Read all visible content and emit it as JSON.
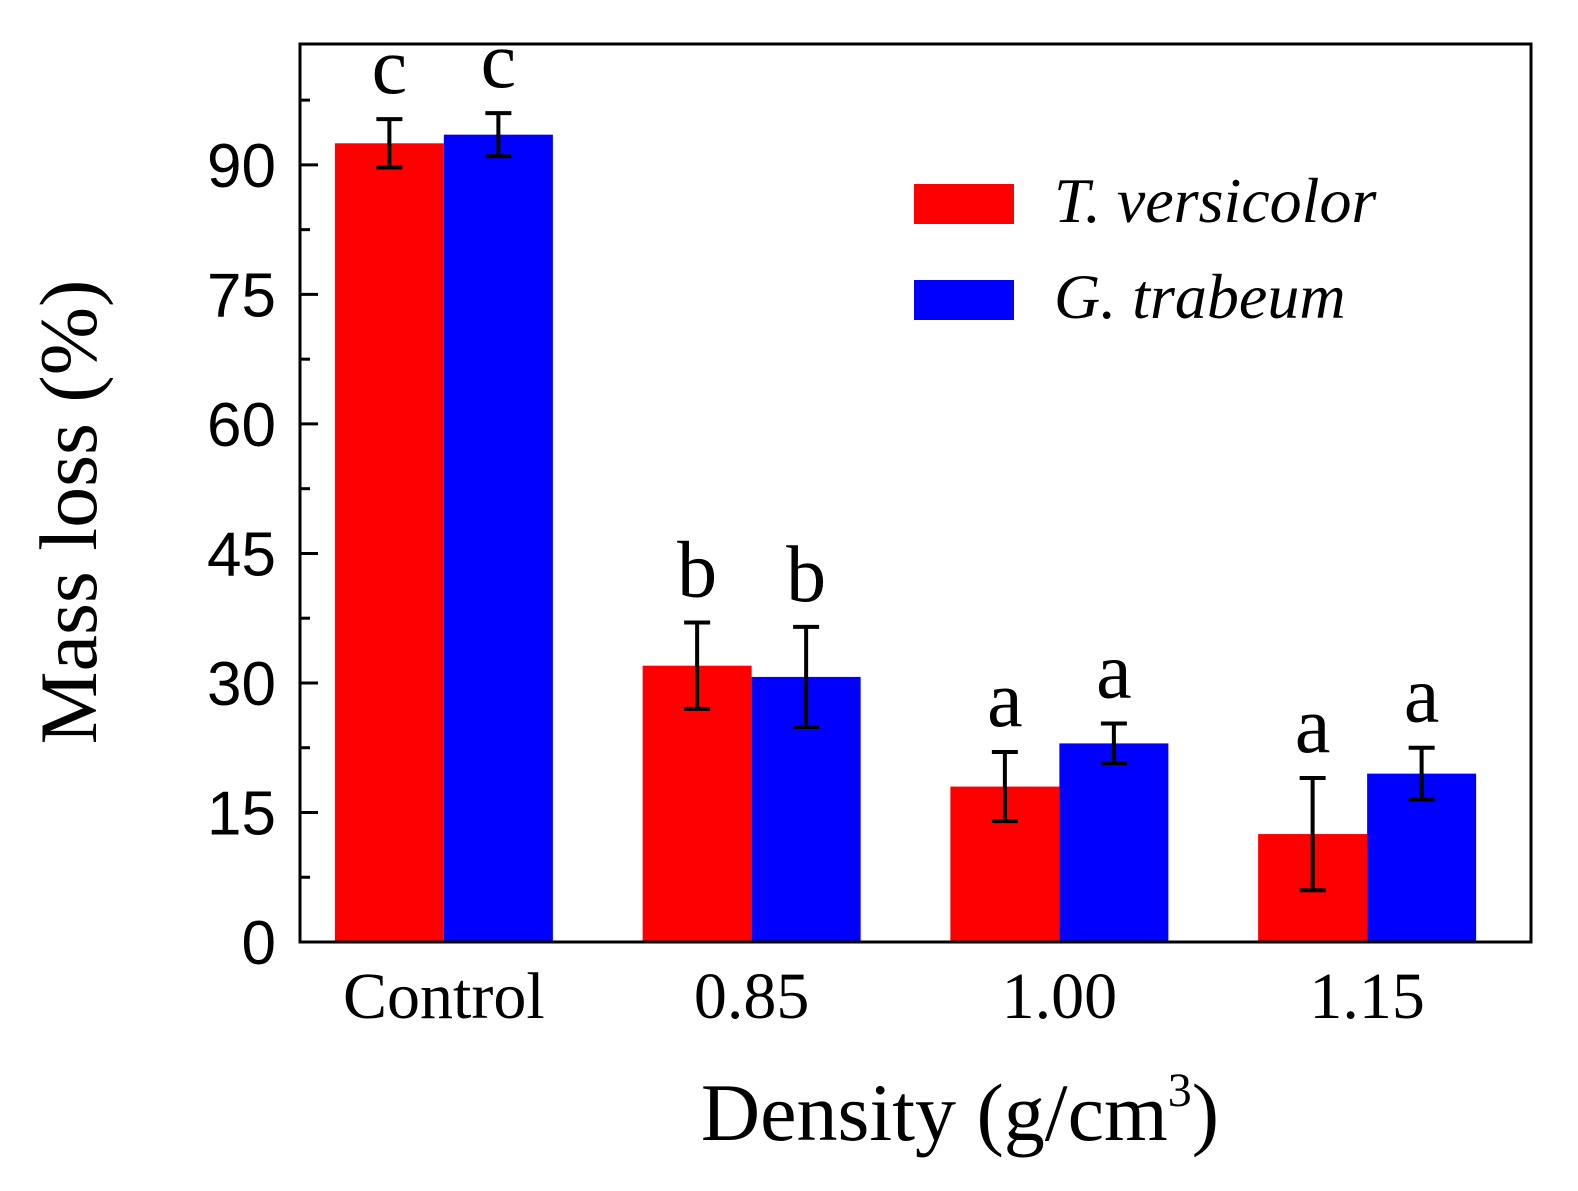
{
  "chart_data": {
    "type": "bar",
    "categories": [
      "Control",
      "0.85",
      "1.00",
      "1.15"
    ],
    "series": [
      {
        "name": "T. versicolor",
        "color": "#ff0000",
        "values": [
          92.5,
          32.0,
          18.0,
          12.5
        ],
        "errors": [
          2.8,
          5.0,
          4.0,
          6.5
        ],
        "significance": [
          "c",
          "b",
          "a",
          "a"
        ]
      },
      {
        "name": "G. trabeum",
        "color": "#0000ff",
        "values": [
          93.5,
          30.7,
          23.0,
          19.5
        ],
        "errors": [
          2.5,
          5.8,
          2.3,
          3.0
        ],
        "significance": [
          "c",
          "b",
          "a",
          "a"
        ]
      }
    ],
    "ylabel": "Mass loss (%)",
    "xlabel_main": "Density (g/cm",
    "xlabel_sup": "3",
    "xlabel_close": ")",
    "ylim": [
      0,
      104
    ],
    "yticks": [
      "0",
      "15",
      "30",
      "45",
      "60",
      "75",
      "90"
    ],
    "legend_position": "top-right",
    "grid": false
  }
}
